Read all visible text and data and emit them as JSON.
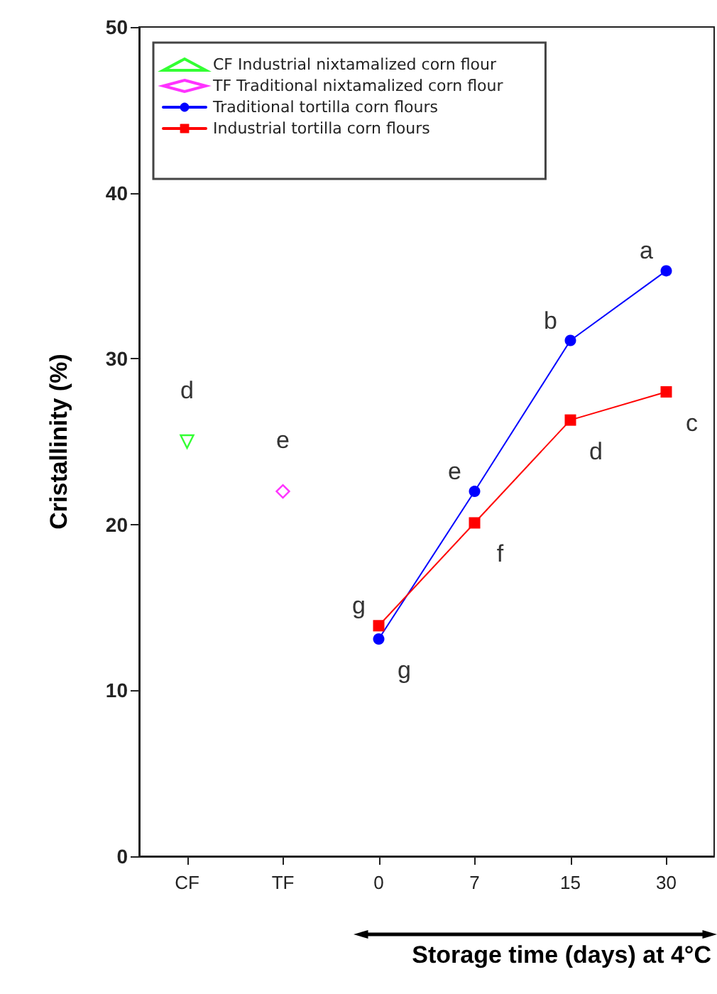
{
  "chart_data": {
    "type": "line",
    "ylabel": "Cristallinity (%)",
    "xlabel": "Storage time (days) at 4°C",
    "categories": [
      "CF",
      "TF",
      "0",
      "7",
      "15",
      "30"
    ],
    "ylim": [
      0,
      50
    ],
    "yticks": [
      0,
      10,
      20,
      30,
      40,
      50
    ],
    "grid": false,
    "legend": "top left",
    "series": [
      {
        "name": "CF Industrial nixtamalized corn flour",
        "type": "scatter",
        "marker": "triangle",
        "color": "#00ff00",
        "values": [
          25,
          null,
          null,
          null,
          null,
          null
        ]
      },
      {
        "name": "TF Traditional nixtamalized corn flour",
        "type": "scatter",
        "marker": "diamond",
        "color": "#ff00ff",
        "values": [
          null,
          22,
          null,
          null,
          null,
          null
        ]
      },
      {
        "name": "Traditional tortilla corn flours",
        "marker": "circle",
        "color": "#0000ff",
        "values": [
          null,
          null,
          13.1,
          22,
          31.1,
          35.3
        ]
      },
      {
        "name": "Industrial tortilla corn flours",
        "marker": "square",
        "color": "#ff0000",
        "values": [
          null,
          null,
          13.9,
          20.1,
          26.3,
          28
        ]
      }
    ],
    "annotations": [
      {
        "text": "d",
        "x": "CF",
        "y": 25
      },
      {
        "text": "e",
        "x": "TF",
        "y": 22
      },
      {
        "text": "g",
        "x": "0",
        "y": 13.9
      },
      {
        "text": "g",
        "x": "0",
        "y": 13.1
      },
      {
        "text": "e",
        "x": "7",
        "y": 22
      },
      {
        "text": "f",
        "x": "7",
        "y": 20.1
      },
      {
        "text": "b",
        "x": "15",
        "y": 31.1
      },
      {
        "text": "d",
        "x": "15",
        "y": 26.3
      },
      {
        "text": "a",
        "x": "30",
        "y": 35.3
      },
      {
        "text": "c",
        "x": "30",
        "y": 28
      }
    ]
  }
}
